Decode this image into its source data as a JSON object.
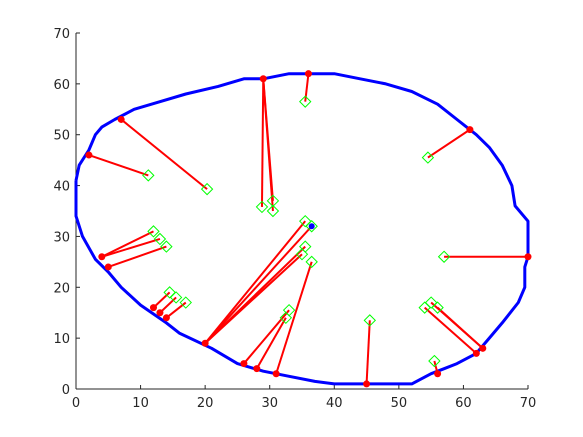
{
  "chart_data": {
    "type": "scatter",
    "title": "",
    "xlabel": "",
    "ylabel": "",
    "xlim": [
      0,
      70
    ],
    "ylim": [
      0,
      70
    ],
    "x_ticks": [
      0,
      10,
      20,
      30,
      40,
      50,
      60,
      70
    ],
    "y_ticks": [
      0,
      10,
      20,
      30,
      40,
      50,
      60,
      70
    ],
    "grid": false,
    "legend": "none",
    "colors": {
      "boundary": "#0000ff",
      "segment": "#ff0000",
      "endpoint": "#ff0000",
      "diamond": "#00ff00",
      "center": "#0000ff"
    },
    "boundary": [
      [
        0,
        41
      ],
      [
        0.5,
        44
      ],
      [
        2,
        47
      ],
      [
        3,
        50
      ],
      [
        4,
        51.5
      ],
      [
        6,
        53
      ],
      [
        9,
        55
      ],
      [
        13,
        56.5
      ],
      [
        17,
        58
      ],
      [
        22,
        59.5
      ],
      [
        26,
        61
      ],
      [
        29,
        61
      ],
      [
        33,
        62
      ],
      [
        37,
        62
      ],
      [
        40,
        62
      ],
      [
        44,
        61
      ],
      [
        48,
        60
      ],
      [
        52,
        58.5
      ],
      [
        56,
        56
      ],
      [
        59,
        53
      ],
      [
        62,
        50
      ],
      [
        64,
        47.5
      ],
      [
        66,
        44
      ],
      [
        67.5,
        40
      ],
      [
        68,
        36
      ],
      [
        70,
        33
      ],
      [
        70,
        26
      ],
      [
        69.5,
        24
      ],
      [
        69.5,
        20
      ],
      [
        68.5,
        17
      ],
      [
        66,
        13
      ],
      [
        64,
        10
      ],
      [
        62,
        7
      ],
      [
        59,
        5
      ],
      [
        57,
        4
      ],
      [
        55,
        3
      ],
      [
        52,
        1
      ],
      [
        48,
        1
      ],
      [
        44,
        1
      ],
      [
        40,
        1
      ],
      [
        37,
        1.5
      ],
      [
        33,
        2.5
      ],
      [
        29,
        3.5
      ],
      [
        25,
        5
      ],
      [
        21,
        8
      ],
      [
        16,
        11
      ],
      [
        14,
        13
      ],
      [
        10,
        16.5
      ],
      [
        7,
        20
      ],
      [
        5,
        23
      ],
      [
        3,
        25.5
      ],
      [
        1,
        30
      ],
      [
        0,
        34
      ],
      [
        0,
        41
      ]
    ],
    "segments": [
      {
        "start": [
          7,
          53
        ],
        "end": [
          20.3,
          39.3
        ]
      },
      {
        "start": [
          2,
          46
        ],
        "end": [
          11.2,
          42
        ]
      },
      {
        "start": [
          29,
          61
        ],
        "end": [
          28.8,
          35.8
        ]
      },
      {
        "start": [
          29,
          61
        ],
        "end": [
          30.5,
          37
        ]
      },
      {
        "start": [
          29,
          61
        ],
        "end": [
          30.5,
          35
        ]
      },
      {
        "start": [
          36,
          62
        ],
        "end": [
          35.5,
          56.5
        ]
      },
      {
        "start": [
          61,
          51
        ],
        "end": [
          54.5,
          45.5
        ]
      },
      {
        "start": [
          70,
          26
        ],
        "end": [
          57,
          26
        ]
      },
      {
        "start": [
          4,
          26
        ],
        "end": [
          12,
          31
        ]
      },
      {
        "start": [
          4,
          26
        ],
        "end": [
          13,
          29.5
        ]
      },
      {
        "start": [
          5,
          24
        ],
        "end": [
          14,
          28
        ]
      },
      {
        "start": [
          12,
          16
        ],
        "end": [
          14.5,
          19
        ]
      },
      {
        "start": [
          13,
          15
        ],
        "end": [
          15.5,
          18
        ]
      },
      {
        "start": [
          14,
          14
        ],
        "end": [
          17,
          17
        ]
      },
      {
        "start": [
          20,
          9
        ],
        "end": [
          35.5,
          33
        ]
      },
      {
        "start": [
          20,
          9
        ],
        "end": [
          35.5,
          28
        ]
      },
      {
        "start": [
          20,
          9
        ],
        "end": [
          35,
          26.5
        ]
      },
      {
        "start": [
          20,
          9
        ],
        "end": [
          36.5,
          32
        ]
      },
      {
        "start": [
          26,
          5
        ],
        "end": [
          33,
          15.5
        ]
      },
      {
        "start": [
          28,
          4
        ],
        "end": [
          32.5,
          14
        ]
      },
      {
        "start": [
          31,
          3
        ],
        "end": [
          36.5,
          25
        ]
      },
      {
        "start": [
          45,
          1
        ],
        "end": [
          45.5,
          13.5
        ]
      },
      {
        "start": [
          56,
          3
        ],
        "end": [
          55.5,
          5.5
        ]
      },
      {
        "start": [
          62,
          7
        ],
        "end": [
          54,
          16
        ]
      },
      {
        "start": [
          63,
          8
        ],
        "end": [
          55,
          17
        ]
      },
      {
        "start": [
          63,
          8
        ],
        "end": [
          56,
          16
        ]
      }
    ],
    "center": [
      36.5,
      32
    ]
  }
}
